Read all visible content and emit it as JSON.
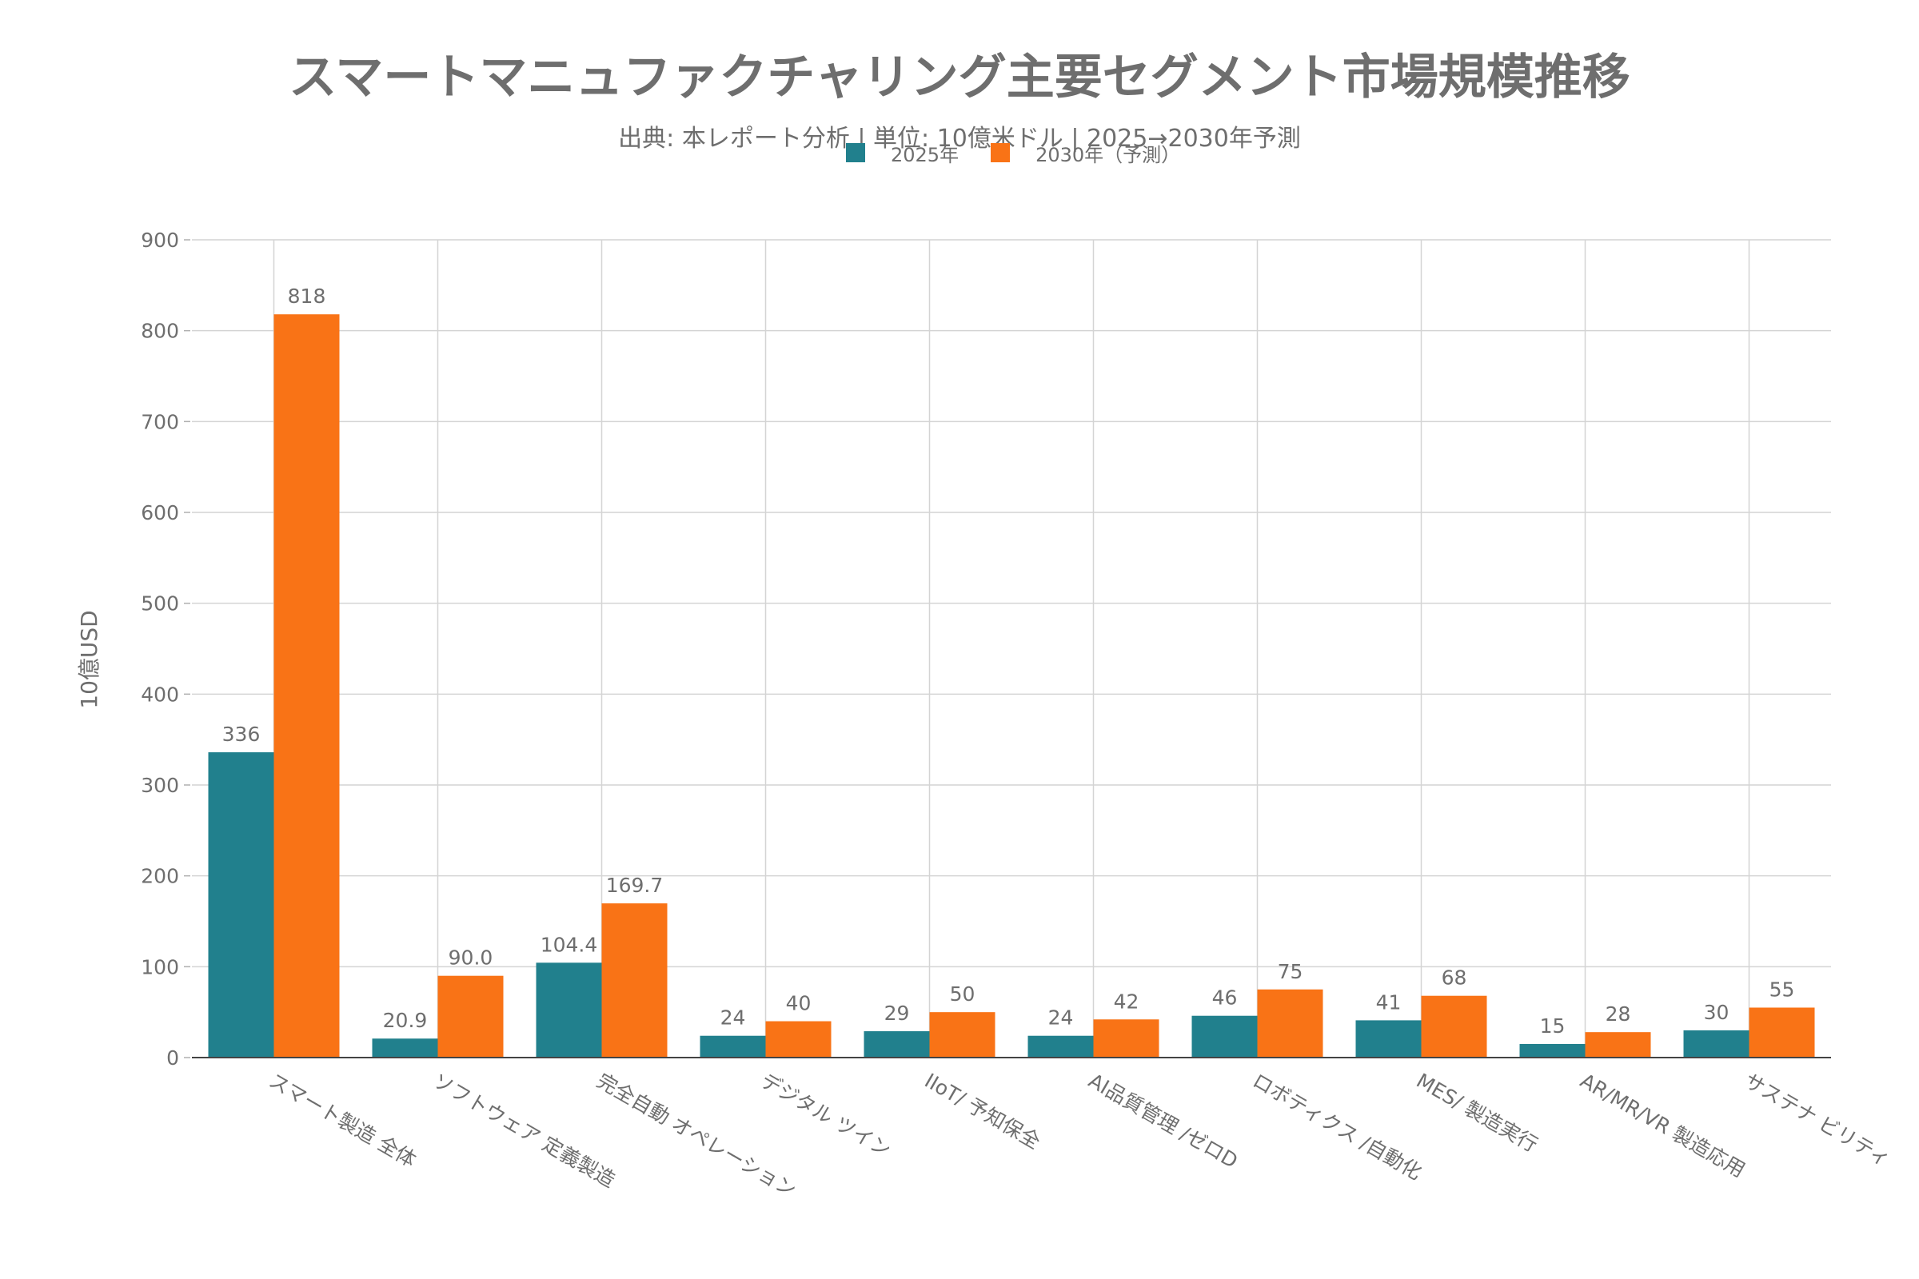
{
  "chart_data": {
    "type": "bar",
    "title": "スマートマニュファクチャリング主要セグメント市場規模推移",
    "subtitle": "出典: 本レポート分析 | 単位: 10億米ドル | 2025→2030年予測",
    "xlabel": "",
    "ylabel": "10億USD",
    "ylim": [
      0,
      900
    ],
    "yticks": [
      0,
      100,
      200,
      300,
      400,
      500,
      600,
      700,
      800,
      900
    ],
    "grid": true,
    "legend_position": "top-center",
    "categories": [
      "スマート製造 全体",
      "ソフトウェア 定義製造",
      "完全自動 オペレーション",
      "デジタル ツイン",
      "IIoT/ 予知保全",
      "AI品質管理 /ゼロD",
      "ロボティクス /自動化",
      "MES/ 製造実行",
      "AR/MR/VR 製造応用",
      "サステナ ビリティ"
    ],
    "series": [
      {
        "name": "2025年",
        "color": "#21808d",
        "values": [
          336,
          20.9,
          104.4,
          24,
          29,
          24,
          46,
          41,
          15,
          30
        ],
        "labels": [
          "336",
          "20.9",
          "104.4",
          "24",
          "29",
          "24",
          "46",
          "41",
          "15",
          "30"
        ]
      },
      {
        "name": "2030年（予測）",
        "color": "#f97316",
        "values": [
          818,
          90.0,
          169.7,
          40,
          50,
          42,
          75,
          68,
          28,
          55
        ],
        "labels": [
          "818",
          "90.0",
          "169.7",
          "40",
          "50",
          "42",
          "75",
          "68",
          "28",
          "55"
        ]
      }
    ]
  }
}
